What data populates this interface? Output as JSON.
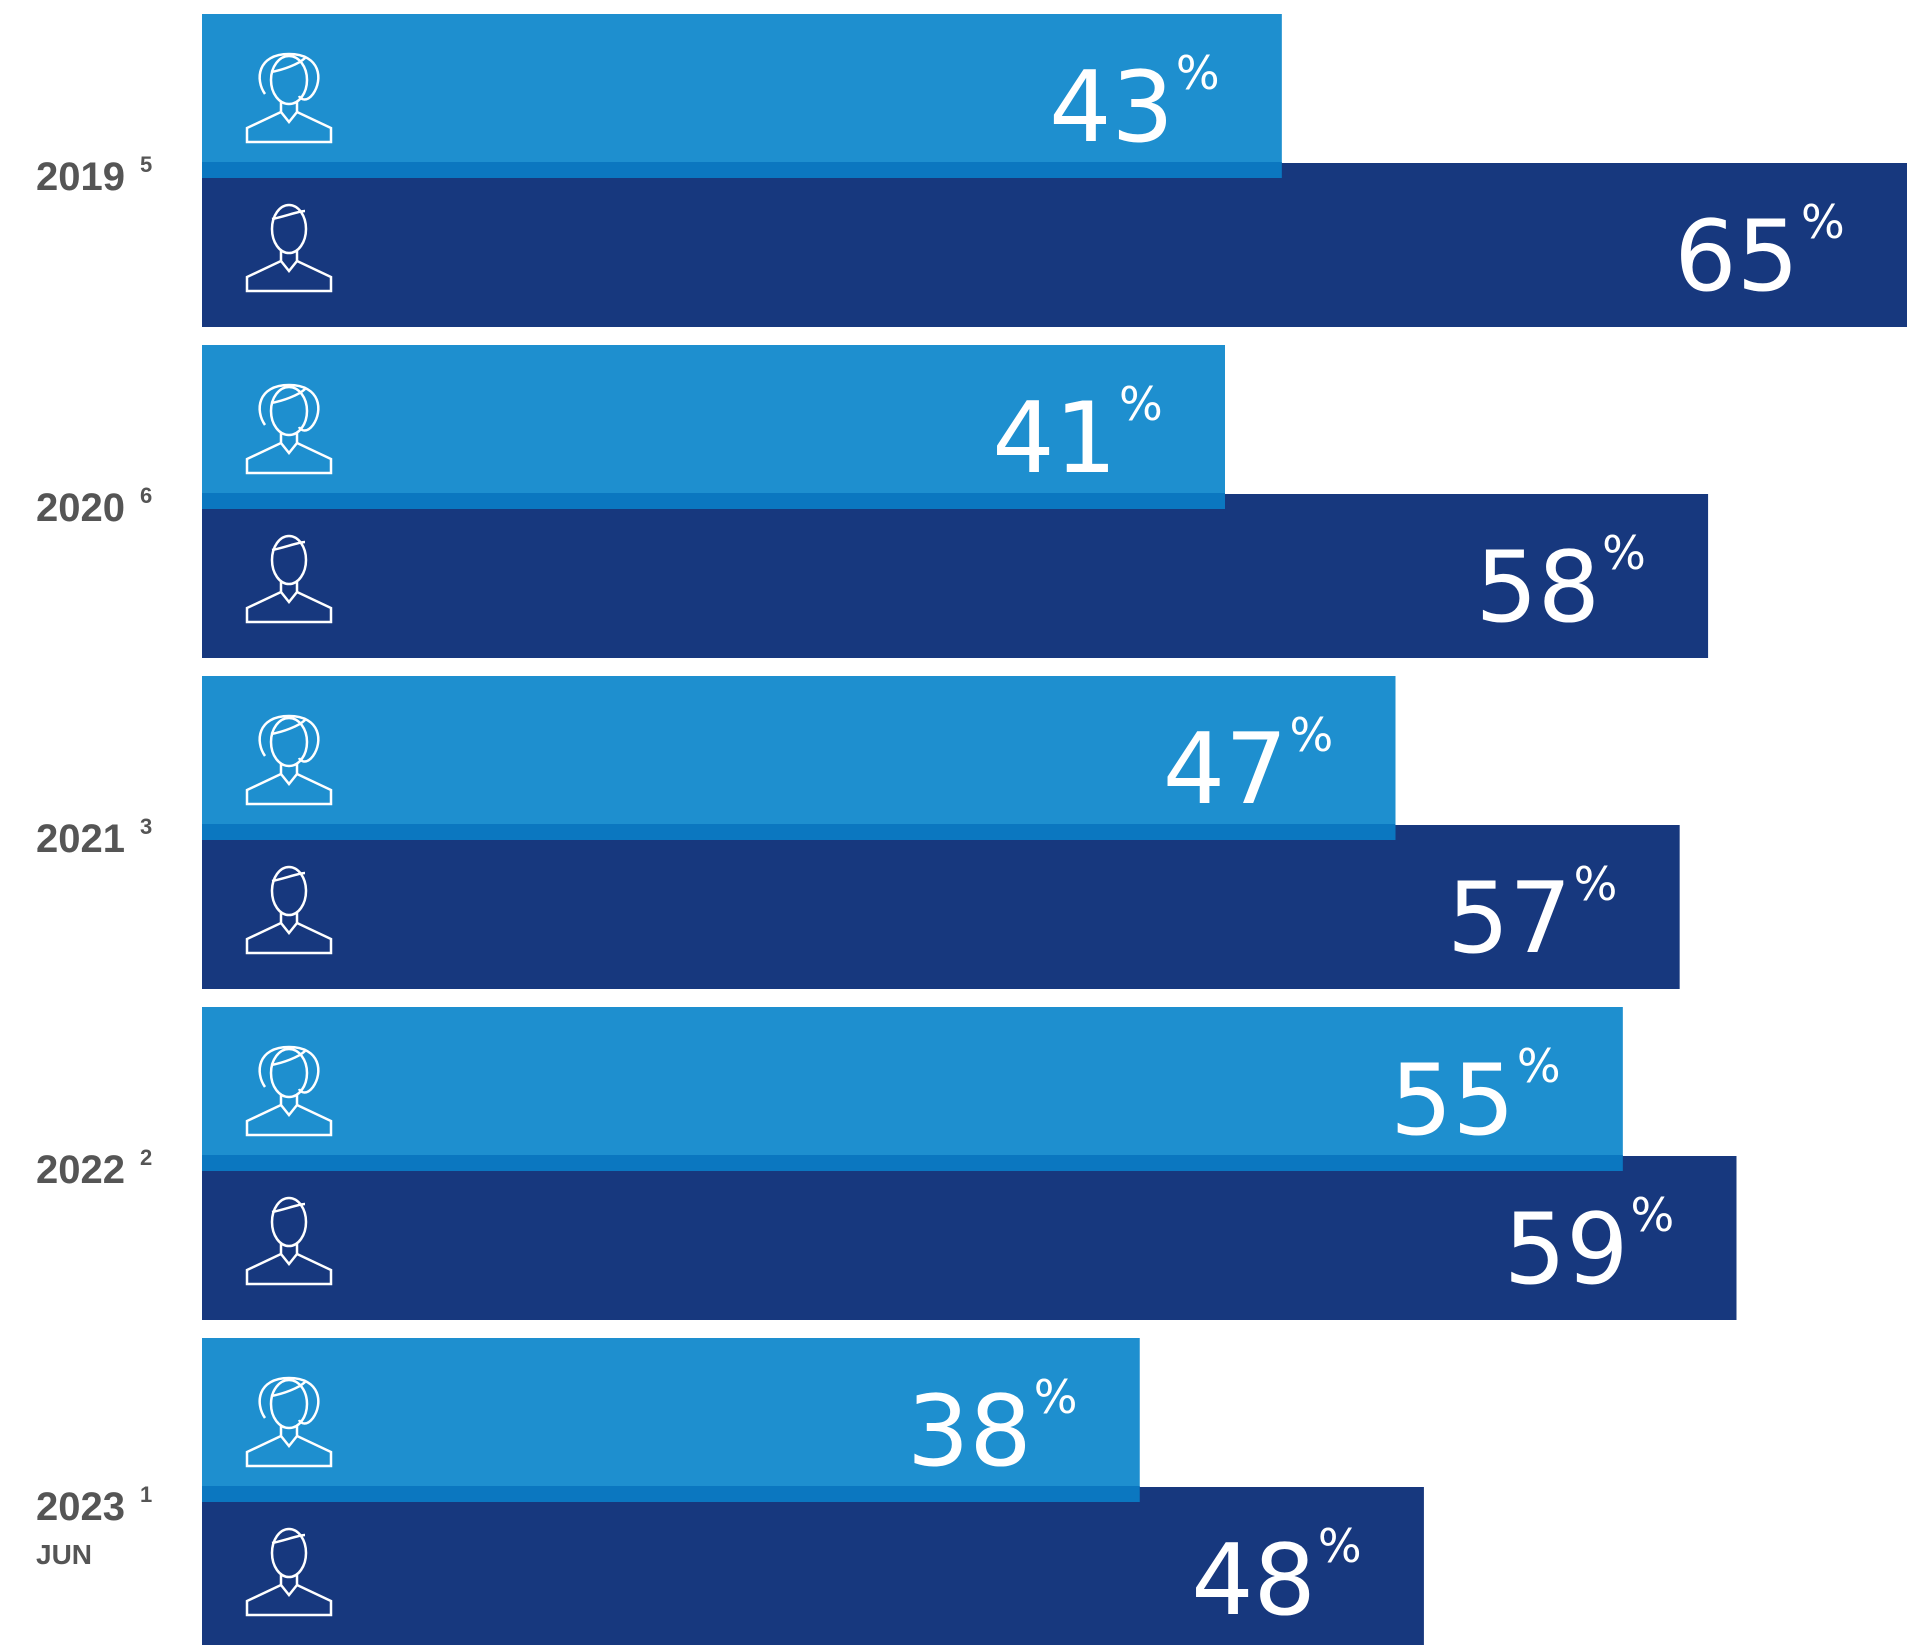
{
  "chart_data": {
    "type": "bar",
    "orientation": "horizontal",
    "categories": [
      "2019",
      "2020",
      "2021",
      "2022",
      "2023"
    ],
    "category_notes": [
      "5",
      "6",
      "3",
      "2",
      "1"
    ],
    "category_sublabels": [
      null,
      null,
      null,
      null,
      "JUN"
    ],
    "unit": "%",
    "series": [
      {
        "color": "#1e8fcf",
        "values": [
          43,
          41,
          47,
          55,
          38
        ]
      },
      {
        "color": "#17387e",
        "values": [
          65,
          58,
          57,
          59,
          48
        ]
      }
    ],
    "xlim": [
      5,
      65
    ]
  }
}
